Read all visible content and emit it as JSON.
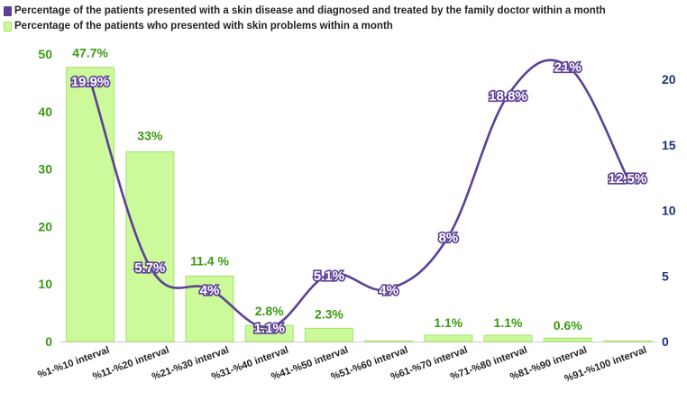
{
  "legend": {
    "line_series": "Percentage of the patients presented with a skin disease and diagnosed and treated by the family doctor within a month",
    "bar_series": "Percentage of the patients who presented with skin problems within a month"
  },
  "colors": {
    "bar_fill": "#ccf99a",
    "bar_stroke": "#a8e070",
    "bar_axis": "#3a9a12",
    "line": "#5d4196",
    "line_axis": "#1f2f7a",
    "axis_line": "#cccccc"
  },
  "chart_data": {
    "type": "bar+line",
    "categories": [
      "%1-%10 interval",
      "%11-%20 interval",
      "%21-%30 interval",
      "%31-%40 interval",
      "%41-%50 interval",
      "%51-%60 interval",
      "%61-%70 interval",
      "%71-%80 interval",
      "%81-%90 interval",
      "%91-%100 interval"
    ],
    "series": [
      {
        "name": "Percentage of the patients who presented with skin problems within a month",
        "type": "bar",
        "axis": "left",
        "values": [
          47.7,
          33,
          11.4,
          2.8,
          2.3,
          0.1,
          1.1,
          1.1,
          0.6,
          0.1
        ],
        "labels": [
          "47.7%",
          "33%",
          "11.4 %",
          "2.8%",
          "2.3%",
          "",
          "1.1%",
          "1.1%",
          "0.6%",
          ""
        ]
      },
      {
        "name": "Percentage of the patients presented with a skin disease and diagnosed and treated by the family doctor within a month",
        "type": "line",
        "axis": "right",
        "values": [
          19.9,
          5.7,
          4,
          1.1,
          5.1,
          4,
          8,
          18.8,
          21,
          12.5
        ],
        "labels": [
          "19.9%",
          "5.7%",
          "4%",
          "1.1%",
          "5.1%",
          "4%",
          "8%",
          "18.8%",
          "21%",
          "12.5%"
        ]
      }
    ],
    "y_left": {
      "min": 0,
      "max": 50,
      "ticks": [
        "0",
        "10",
        "20",
        "30",
        "40",
        "50"
      ]
    },
    "y_right": {
      "min": 0,
      "max": 20,
      "ticks": [
        "0",
        "5",
        "10",
        "15",
        "20"
      ]
    }
  }
}
